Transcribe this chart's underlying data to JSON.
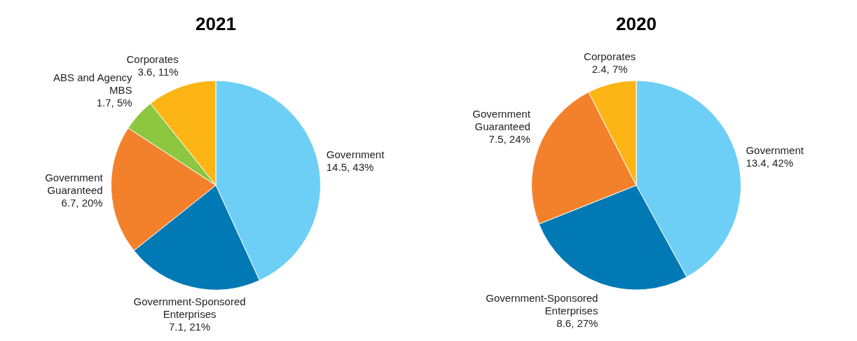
{
  "chart_data": [
    {
      "type": "pie",
      "title": "2021",
      "categories": [
        "Government",
        "Government-Sponsored Enterprises",
        "Government Guaranteed",
        "ABS and Agency MBS",
        "Corporates"
      ],
      "values": [
        14.5,
        7.1,
        6.7,
        1.7,
        3.6
      ],
      "value_labels": [
        "14.5, 43%",
        "7.1, 21%",
        "6.7, 20%",
        "1.7, 5%",
        "3.6, 11%"
      ],
      "colors": [
        "#6dcff6",
        "#0079b5",
        "#f3812b",
        "#8dc63f",
        "#fdb515"
      ]
    },
    {
      "type": "pie",
      "title": "2020",
      "categories": [
        "Government",
        "Government-Sponsored Enterprises",
        "Government Guaranteed",
        "Corporates"
      ],
      "values": [
        13.4,
        8.6,
        7.5,
        2.4
      ],
      "value_labels": [
        "13.4, 42%",
        "8.6, 27%",
        "7.5, 24%",
        "2.4, 7%"
      ],
      "colors": [
        "#6dcff6",
        "#0079b5",
        "#f3812b",
        "#fdb515"
      ]
    }
  ]
}
